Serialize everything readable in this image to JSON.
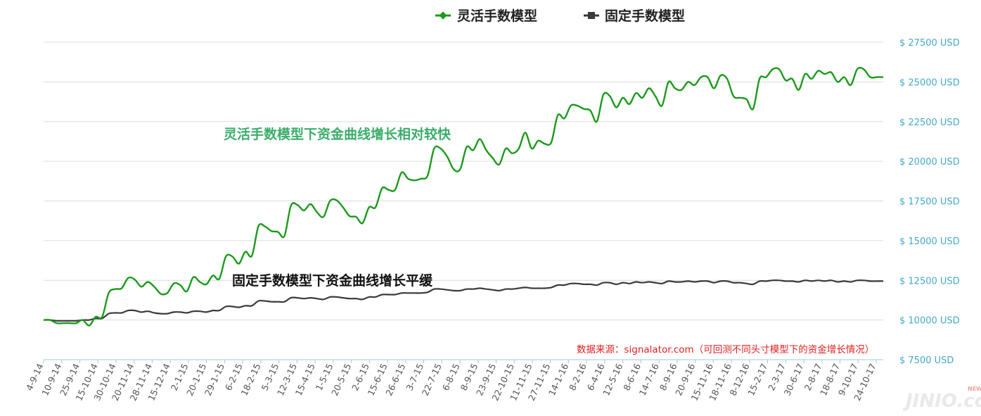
{
  "chart_data": {
    "type": "line",
    "legend_position": "top-center",
    "grid": "horizontal",
    "series": [
      {
        "name": "灵活手数模型",
        "color": "#1a9a1a",
        "marker": "diamond",
        "values": [
          10000,
          10000,
          9800,
          9800,
          9800,
          9800,
          10000,
          9650,
          10200,
          10200,
          11700,
          11950,
          12000,
          12650,
          12550,
          12100,
          12400,
          12100,
          11650,
          11700,
          12300,
          12200,
          11800,
          12700,
          12400,
          12250,
          12800,
          12600,
          14000,
          14000,
          13550,
          14300,
          14050,
          15900,
          15900,
          15600,
          15550,
          15300,
          17200,
          17250,
          16900,
          17300,
          16800,
          16500,
          17500,
          17550,
          17100,
          16550,
          16500,
          16100,
          17100,
          17100,
          18300,
          18200,
          18200,
          19300,
          18900,
          18800,
          18900,
          19100,
          20800,
          20800,
          20300,
          19500,
          19500,
          20900,
          20700,
          21400,
          20700,
          20200,
          19800,
          20800,
          20500,
          20800,
          21800,
          20800,
          21300,
          21100,
          21200,
          22900,
          22700,
          23500,
          23500,
          23300,
          23200,
          22500,
          24200,
          24100,
          23400,
          24000,
          23600,
          24300,
          24000,
          24600,
          24100,
          23500,
          25000,
          24600,
          24500,
          25000,
          24800,
          25300,
          25300,
          24600,
          25400,
          25200,
          24100,
          24000,
          23900,
          23300,
          25200,
          25300,
          25800,
          25800,
          25100,
          25200,
          24500,
          25500,
          25200,
          25700,
          25500,
          25600,
          25000,
          25300,
          24800,
          25800,
          25800,
          25300,
          25300,
          25300
        ]
      },
      {
        "name": "固定手数模型",
        "color": "#3a3a3a",
        "marker": "square",
        "values": [
          10000,
          10000,
          9950,
          9950,
          9950,
          9950,
          10000,
          10000,
          10100,
          10100,
          10400,
          10450,
          10450,
          10600,
          10600,
          10500,
          10550,
          10450,
          10400,
          10400,
          10500,
          10500,
          10450,
          10550,
          10550,
          10500,
          10600,
          10600,
          10850,
          10850,
          10800,
          10900,
          10900,
          11200,
          11200,
          11150,
          11150,
          11150,
          11400,
          11400,
          11350,
          11400,
          11350,
          11300,
          11450,
          11450,
          11400,
          11350,
          11350,
          11300,
          11450,
          11450,
          11600,
          11600,
          11600,
          11700,
          11700,
          11700,
          11700,
          11750,
          11950,
          11950,
          11900,
          11850,
          11850,
          11950,
          11950,
          12000,
          11950,
          11900,
          11850,
          11950,
          11950,
          12000,
          12050,
          12000,
          12000,
          12000,
          12050,
          12200,
          12200,
          12300,
          12300,
          12250,
          12250,
          12200,
          12350,
          12350,
          12250,
          12350,
          12300,
          12400,
          12350,
          12400,
          12350,
          12300,
          12450,
          12400,
          12400,
          12450,
          12400,
          12450,
          12450,
          12350,
          12450,
          12450,
          12350,
          12350,
          12300,
          12250,
          12450,
          12450,
          12500,
          12500,
          12450,
          12450,
          12400,
          12500,
          12450,
          12500,
          12450,
          12500,
          12400,
          12450,
          12400,
          12500,
          12500,
          12450,
          12450,
          12450
        ]
      }
    ],
    "x_tick_labels": [
      "4-9-14",
      "10-9-14",
      "25-9-14",
      "15-10-14",
      "30-10-14",
      "20-11-14",
      "28-11-14",
      "15-12-14",
      "2-1-15",
      "20-1-15",
      "29-1-15",
      "6-2-15",
      "18-2-15",
      "5-3-15",
      "12-3-15",
      "15-4-15",
      "1-5-15",
      "20-5-15",
      "2-6-15",
      "15-6-15",
      "26-6-15",
      "3-7-15",
      "22-7-15",
      "6-8-15",
      "8-9-15",
      "23-9-15",
      "22-10-15",
      "11-11-15",
      "27-11-15",
      "14-1-16",
      "8-2-16",
      "6-4-16",
      "12-5-16",
      "8-6-16",
      "14-7-16",
      "8-9-16",
      "20-9-16",
      "15-11-16",
      "18-11-16",
      "8-12-16",
      "15-2-17",
      "2-3-17",
      "30-6-17",
      "2-8-17",
      "18-8-17",
      "9-10-17",
      "24-10-17"
    ],
    "y_axis": {
      "min": 7500,
      "max": 27500,
      "step": 2500,
      "ticks": [
        "$ 7500 USD",
        "$ 10000 USD",
        "$ 12500 USD",
        "$ 15000 USD",
        "$ 17500 USD",
        "$ 20000 USD",
        "$ 22500 USD",
        "$ 25000 USD",
        "$ 27500 USD"
      ],
      "position": "right"
    },
    "annotations": {
      "green_text": "灵活手数模型下资金曲线增长相对较快",
      "dark_text": "固定手数模型下资金曲线增长平缓",
      "source_text": "数据来源：signalator.com（可回测不同头寸模型下的资金增长情况）"
    }
  },
  "watermark": "JINIO.com",
  "watermark_badge": "NEWS"
}
